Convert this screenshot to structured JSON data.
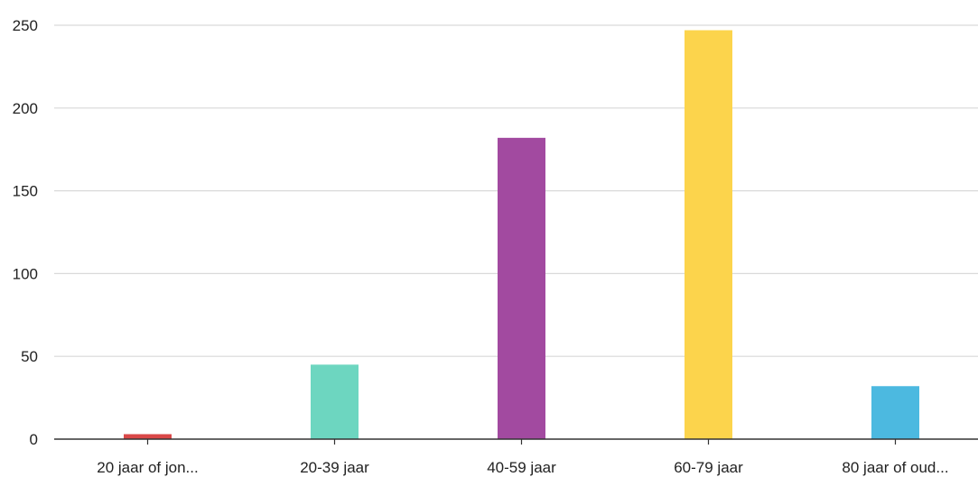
{
  "chart_data": {
    "type": "bar",
    "categories": [
      "20 jaar of jon...",
      "20-39 jaar",
      "40-59 jaar",
      "60-79 jaar",
      "80 jaar of oud..."
    ],
    "values": [
      3,
      45,
      182,
      247,
      32
    ],
    "colors": [
      "#d94848",
      "#6dd6c0",
      "#a24aa0",
      "#fcd44c",
      "#4cb9e0"
    ],
    "ylim": [
      0,
      250
    ],
    "yticks": [
      0,
      50,
      100,
      150,
      200,
      250
    ],
    "grid": true,
    "title": "",
    "xlabel": "",
    "ylabel": ""
  }
}
